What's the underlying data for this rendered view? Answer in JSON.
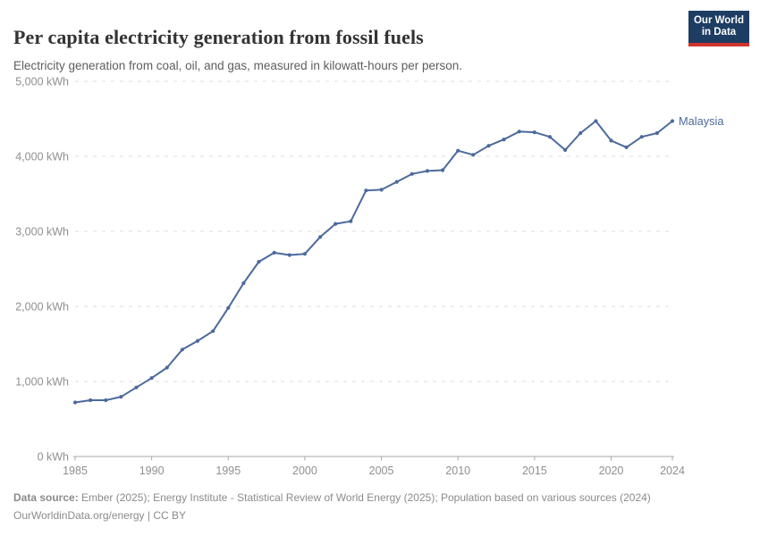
{
  "header": {
    "title": "Per capita electricity generation from fossil fuels",
    "subtitle": "Electricity generation from coal, oil, and gas, measured in kilowatt-hours per person."
  },
  "logo": {
    "line1": "Our World",
    "line2": "in Data"
  },
  "footer": {
    "source_label": "Data source:",
    "source_text": " Ember (2025); Energy Institute - Statistical Review of World Energy (2025); Population based on various sources (2024)",
    "link_text": "OurWorldinData.org/energy",
    "separator": " | ",
    "license": "CC BY"
  },
  "colors": {
    "line": "#4c6a9c",
    "grid": "#dddddd",
    "axis": "#a9a9a9",
    "tick_text": "#8f8f8f",
    "logo_bg": "#1d3d63",
    "logo_red": "#d0342c"
  },
  "chart_data": {
    "type": "line",
    "title": "Per capita electricity generation from fossil fuels",
    "subtitle": "Electricity generation from coal, oil, and gas, measured in kilowatt-hours per person.",
    "unit": "kWh",
    "xlim": [
      1985,
      2024
    ],
    "ylim": [
      0,
      5000
    ],
    "grid": "horizontal-dashed",
    "legend_position": "end-of-line-label",
    "x": [
      1985,
      1986,
      1987,
      1988,
      1989,
      1990,
      1991,
      1992,
      1993,
      1994,
      1995,
      1996,
      1997,
      1998,
      1999,
      2000,
      2001,
      2002,
      2003,
      2004,
      2005,
      2006,
      2007,
      2008,
      2009,
      2010,
      2011,
      2012,
      2013,
      2014,
      2015,
      2016,
      2017,
      2018,
      2019,
      2020,
      2021,
      2022,
      2023,
      2024
    ],
    "series": [
      {
        "name": "Malaysia",
        "color": "#4c6a9c",
        "values": [
          720,
          750,
          750,
          795,
          920,
          1045,
          1185,
          1425,
          1540,
          1670,
          1980,
          2310,
          2595,
          2715,
          2685,
          2700,
          2925,
          3100,
          3135,
          3545,
          3555,
          3660,
          3765,
          3805,
          3815,
          4075,
          4020,
          4140,
          4225,
          4330,
          4320,
          4260,
          4085,
          4310,
          4470,
          4210,
          4120,
          4260,
          4310,
          4470
        ]
      }
    ],
    "x_ticks": [
      1985,
      1990,
      1995,
      2000,
      2005,
      2010,
      2015,
      2020,
      2024
    ],
    "y_ticks": [
      0,
      1000,
      2000,
      3000,
      4000,
      5000
    ],
    "y_tick_labels": [
      "0 kWh",
      "1,000 kWh",
      "2,000 kWh",
      "3,000 kWh",
      "4,000 kWh",
      "5,000 kWh"
    ]
  }
}
